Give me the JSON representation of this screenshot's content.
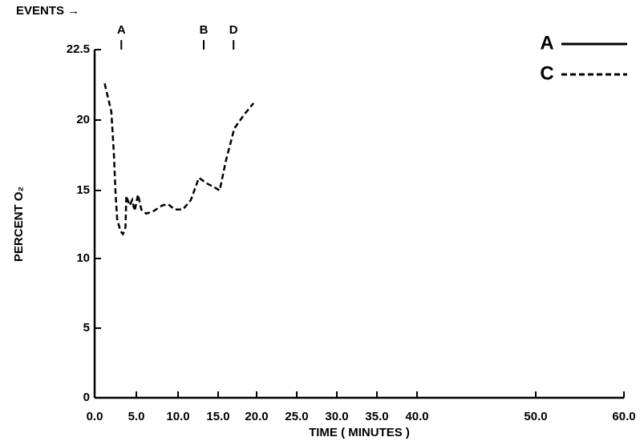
{
  "chart_data": {
    "type": "line",
    "xlabel": "TIME ( MINUTES )",
    "ylabel": "PERCENT O₂",
    "events_label": "EVENTS →",
    "events": [
      {
        "label": "A",
        "x": 3.2
      },
      {
        "label": "B",
        "x": 13.2
      },
      {
        "label": "D",
        "x": 17.0
      }
    ],
    "xlim": [
      0,
      60
    ],
    "ylim": [
      0,
      22.5
    ],
    "xticks": [
      {
        "value": 0,
        "label": "0.0"
      },
      {
        "value": 5,
        "label": "5.0"
      },
      {
        "value": 10,
        "label": "10.0"
      },
      {
        "value": 15,
        "label": "15.0"
      },
      {
        "value": 20,
        "label": "20.0"
      },
      {
        "value": 25,
        "label": "25.0"
      },
      {
        "value": 30,
        "label": "30.0"
      },
      {
        "value": 35,
        "label": "35.0"
      },
      {
        "value": 40,
        "label": "40.0"
      },
      {
        "value": 50,
        "label": "50.0"
      },
      {
        "value": 60,
        "label": "60.0"
      }
    ],
    "yticks": [
      0,
      5,
      10,
      15,
      20,
      22.5
    ],
    "grid": false,
    "legend": "top-right",
    "series": [
      {
        "name": "A",
        "color": "#000000",
        "style": "solid",
        "x": [],
        "values": []
      },
      {
        "name": "C",
        "color": "#000000",
        "style": "dashed",
        "x": [
          1.2,
          2.0,
          2.3,
          2.5,
          2.7,
          3.1,
          3.4,
          3.7,
          3.8,
          4.2,
          4.5,
          4.8,
          5.2,
          5.6,
          6.2,
          7.1,
          8.1,
          8.8,
          9.6,
          10.6,
          11.6,
          12.6,
          13.6,
          14.6,
          15.2,
          16.0,
          17.1,
          18.4,
          19.6
        ],
        "values": [
          21.3,
          20.3,
          17.7,
          14.9,
          12.9,
          12.0,
          11.8,
          12.3,
          14.6,
          13.9,
          14.3,
          13.5,
          14.7,
          13.6,
          13.3,
          13.5,
          13.9,
          14.0,
          13.6,
          13.6,
          14.3,
          15.9,
          15.5,
          15.2,
          15.0,
          17.1,
          19.4,
          20.2,
          20.6
        ]
      }
    ]
  }
}
